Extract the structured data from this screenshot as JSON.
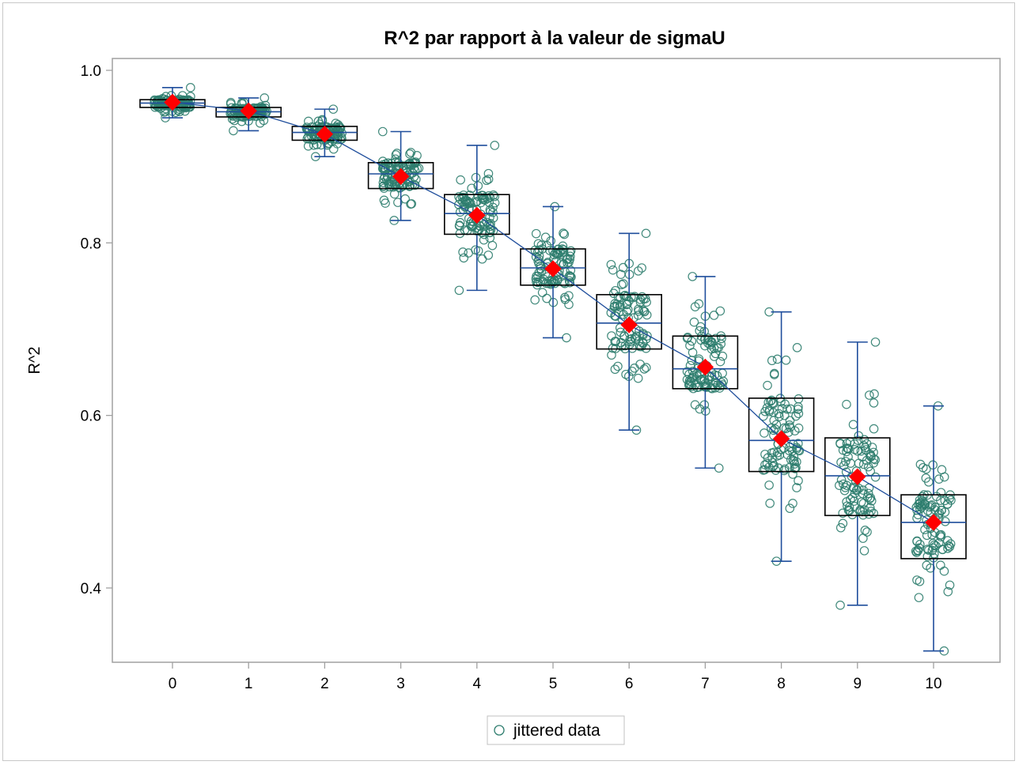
{
  "chart_data": {
    "type": "box",
    "title": "R^2 par rapport à la valeur de sigmaU",
    "xlabel": "",
    "ylabel": "R^2",
    "categories": [
      "0",
      "1",
      "2",
      "3",
      "4",
      "5",
      "6",
      "7",
      "8",
      "9",
      "10"
    ],
    "yticks": [
      "0.4",
      "0.6",
      "0.8",
      "1.0"
    ],
    "ylim": [
      0.32,
      1.015
    ],
    "boxes": [
      {
        "x": 0,
        "min": 0.945,
        "q1": 0.957,
        "median": 0.962,
        "q3": 0.966,
        "max": 0.98,
        "mean": 0.963
      },
      {
        "x": 1,
        "min": 0.93,
        "q1": 0.946,
        "median": 0.952,
        "q3": 0.957,
        "max": 0.968,
        "mean": 0.953
      },
      {
        "x": 2,
        "min": 0.9,
        "q1": 0.919,
        "median": 0.928,
        "q3": 0.935,
        "max": 0.955,
        "mean": 0.926
      },
      {
        "x": 3,
        "min": 0.826,
        "q1": 0.863,
        "median": 0.88,
        "q3": 0.893,
        "max": 0.929,
        "mean": 0.877
      },
      {
        "x": 4,
        "min": 0.745,
        "q1": 0.81,
        "median": 0.834,
        "q3": 0.856,
        "max": 0.913,
        "mean": 0.832
      },
      {
        "x": 5,
        "min": 0.69,
        "q1": 0.751,
        "median": 0.771,
        "q3": 0.793,
        "max": 0.842,
        "mean": 0.77
      },
      {
        "x": 6,
        "min": 0.583,
        "q1": 0.677,
        "median": 0.707,
        "q3": 0.74,
        "max": 0.811,
        "mean": 0.705
      },
      {
        "x": 7,
        "min": 0.539,
        "q1": 0.631,
        "median": 0.654,
        "q3": 0.692,
        "max": 0.761,
        "mean": 0.656
      },
      {
        "x": 8,
        "min": 0.431,
        "q1": 0.535,
        "median": 0.571,
        "q3": 0.62,
        "max": 0.72,
        "mean": 0.573
      },
      {
        "x": 9,
        "min": 0.38,
        "q1": 0.484,
        "median": 0.53,
        "q3": 0.574,
        "max": 0.685,
        "mean": 0.529
      },
      {
        "x": 10,
        "min": 0.327,
        "q1": 0.434,
        "median": 0.476,
        "q3": 0.508,
        "max": 0.611,
        "mean": 0.476
      }
    ],
    "mean_line": true,
    "series": [
      {
        "name": "jittered data",
        "marker": "open-circle",
        "color": "#2e7d6e"
      }
    ],
    "legend": {
      "position": "bottom-center"
    },
    "colors": {
      "box_outline": "#000000",
      "whisker": "#1f4e9c",
      "mean_marker": "#ff0000",
      "mean_line": "#1f4e9c",
      "jitter": "#2e7d6e",
      "axis": "#a0a0a0"
    }
  }
}
